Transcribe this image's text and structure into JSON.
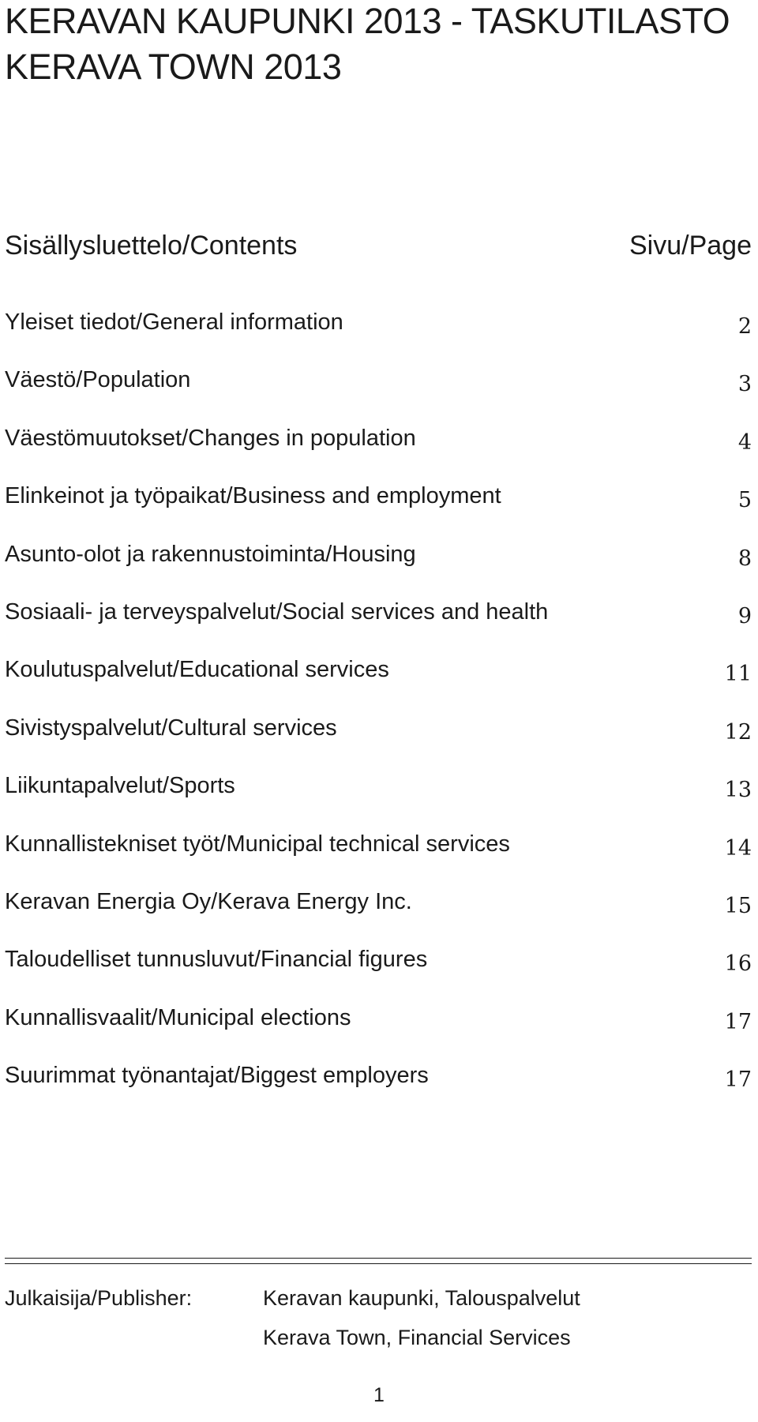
{
  "header": {
    "title_line1": "KERAVAN KAUPUNKI 2013 - TASKUTILASTO",
    "title_line2": "KERAVA TOWN 2013"
  },
  "contents": {
    "heading": "Sisällysluettelo/Contents",
    "page_heading": "Sivu/Page",
    "items": [
      {
        "label": "Yleiset tiedot/General information",
        "page": "2"
      },
      {
        "label": "Väestö/Population",
        "page": "3"
      },
      {
        "label": "Väestömuutokset/Changes in population",
        "page": "4"
      },
      {
        "label": "Elinkeinot ja työpaikat/Business and employment",
        "page": "5"
      },
      {
        "label": "Asunto-olot ja rakennustoiminta/Housing",
        "page": "8"
      },
      {
        "label": "Sosiaali- ja terveyspalvelut/Social services and health",
        "page": "9"
      },
      {
        "label": "Koulutuspalvelut/Educational services",
        "page": "11"
      },
      {
        "label": "Sivistyspalvelut/Cultural services",
        "page": "12"
      },
      {
        "label": "Liikuntapalvelut/Sports",
        "page": "13"
      },
      {
        "label": "Kunnallistekniset työt/Municipal technical services",
        "page": "14"
      },
      {
        "label": "Keravan Energia Oy/Kerava Energy Inc.",
        "page": "15"
      },
      {
        "label": "Taloudelliset tunnusluvut/Financial figures",
        "page": "16"
      },
      {
        "label": "Kunnallisvaalit/Municipal elections",
        "page": "17"
      },
      {
        "label": "Suurimmat työnantajat/Biggest employers",
        "page": "17"
      }
    ]
  },
  "publisher": {
    "label": "Julkaisija/Publisher:",
    "line1": "Keravan kaupunki, Talouspalvelut",
    "line2": "Kerava Town, Financial Services"
  },
  "footer": {
    "page_number": "1"
  }
}
